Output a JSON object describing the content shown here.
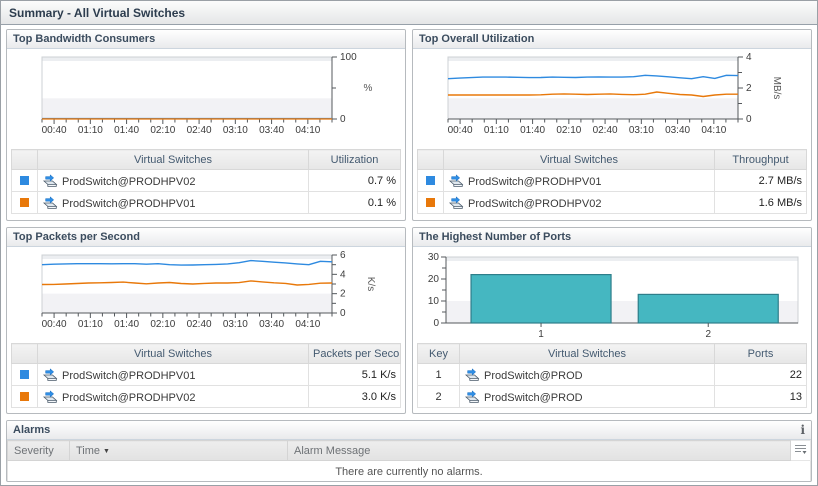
{
  "title": "Summary - All Virtual Switches",
  "colors": {
    "series_blue": "#2E8AE0",
    "series_orange": "#E8780A",
    "bar_teal": "#45B7C1",
    "bar_teal_border": "#2E7E8A"
  },
  "panels": {
    "bandwidth": {
      "title": "Top Bandwidth Consumers",
      "table": {
        "col_name": "Virtual Switches",
        "col_value": "Utilization",
        "rows": [
          {
            "swatch": "#2E8AE0",
            "name": "ProdSwitch@PRODHPV02",
            "value": "0.7 %"
          },
          {
            "swatch": "#E8780A",
            "name": "ProdSwitch@PRODHPV01",
            "value": "0.1 %"
          }
        ]
      }
    },
    "utilization": {
      "title": "Top Overall Utilization",
      "table": {
        "col_name": "Virtual Switches",
        "col_value": "Throughput",
        "rows": [
          {
            "swatch": "#2E8AE0",
            "name": "ProdSwitch@PRODHPV01",
            "value": "2.7 MB/s"
          },
          {
            "swatch": "#E8780A",
            "name": "ProdSwitch@PRODHPV02",
            "value": "1.6 MB/s"
          }
        ]
      }
    },
    "packets": {
      "title": "Top Packets per Second",
      "table": {
        "col_name": "Virtual Switches",
        "col_value": "Packets per Second",
        "rows": [
          {
            "swatch": "#2E8AE0",
            "name": "ProdSwitch@PRODHPV01",
            "value": "5.1 K/s"
          },
          {
            "swatch": "#E8780A",
            "name": "ProdSwitch@PRODHPV02",
            "value": "3.0 K/s"
          }
        ]
      }
    },
    "ports": {
      "title": "The Highest Number of Ports",
      "table": {
        "col_key": "Key",
        "col_name": "Virtual Switches",
        "col_value": "Ports",
        "rows": [
          {
            "key": "1",
            "name": "ProdSwitch@PROD",
            "value": "22"
          },
          {
            "key": "2",
            "name": "ProdSwitch@PROD",
            "value": "13"
          }
        ]
      }
    }
  },
  "alarms": {
    "title": "Alarms",
    "info_icon": "i",
    "col_severity": "Severity",
    "col_time": "Time",
    "col_message": "Alarm Message",
    "empty_message": "There are currently no alarms."
  },
  "chart_data": [
    {
      "id": "bandwidth",
      "type": "line",
      "title": "Top Bandwidth Consumers",
      "ylabel": "%",
      "ylim": [
        0,
        100
      ],
      "yticks": [
        0,
        100
      ],
      "x_labels": [
        "00:40",
        "01:10",
        "01:40",
        "02:10",
        "02:40",
        "03:10",
        "03:40",
        "04:10"
      ],
      "legend_position": "table-below",
      "grid": false,
      "series": [
        {
          "name": "ProdSwitch@PRODHPV02",
          "color": "#2E8AE0",
          "values": [
            0.7,
            0.7
          ]
        },
        {
          "name": "ProdSwitch@PRODHPV01",
          "color": "#E8780A",
          "values": [
            0.1,
            0.1
          ]
        }
      ]
    },
    {
      "id": "utilization",
      "type": "line",
      "title": "Top Overall Utilization",
      "ylabel": "MB/s",
      "ylim": [
        0,
        4
      ],
      "yticks": [
        0,
        2,
        4
      ],
      "x_labels": [
        "00:40",
        "01:10",
        "01:40",
        "02:10",
        "02:40",
        "03:10",
        "03:40",
        "04:10"
      ],
      "legend_position": "table-below",
      "grid": false,
      "series": [
        {
          "name": "ProdSwitch@PRODHPV01",
          "color": "#2E8AE0",
          "values": [
            2.6,
            2.64,
            2.67,
            2.7,
            2.7,
            2.7,
            2.69,
            2.67,
            2.68,
            2.7,
            2.69,
            2.68,
            2.7,
            2.71,
            2.7,
            2.7,
            2.73,
            2.82,
            2.78,
            2.72,
            2.66,
            2.6,
            2.73,
            2.62,
            2.82,
            2.8
          ]
        },
        {
          "name": "ProdSwitch@PRODHPV02",
          "color": "#E8780A",
          "values": [
            1.55,
            1.55,
            1.55,
            1.55,
            1.55,
            1.55,
            1.55,
            1.55,
            1.56,
            1.6,
            1.62,
            1.6,
            1.58,
            1.6,
            1.62,
            1.59,
            1.57,
            1.6,
            1.74,
            1.66,
            1.58,
            1.55,
            1.45,
            1.55,
            1.6,
            1.6
          ]
        }
      ]
    },
    {
      "id": "packets",
      "type": "line",
      "title": "Top Packets per Second",
      "ylabel": "K/s",
      "ylim": [
        0,
        6
      ],
      "yticks": [
        0,
        2,
        4,
        6
      ],
      "x_labels": [
        "00:40",
        "01:10",
        "01:40",
        "02:10",
        "02:40",
        "03:10",
        "03:40",
        "04:10"
      ],
      "legend_position": "table-below",
      "grid": false,
      "series": [
        {
          "name": "ProdSwitch@PRODHPV01",
          "color": "#2E8AE0",
          "values": [
            5.0,
            5.05,
            5.08,
            5.1,
            5.1,
            5.1,
            5.09,
            5.1,
            5.1,
            5.05,
            5.1,
            5.0,
            4.95,
            4.97,
            5.0,
            5.03,
            5.08,
            5.2,
            5.42,
            5.35,
            5.26,
            5.18,
            5.08,
            5.0,
            5.35,
            5.3
          ]
        },
        {
          "name": "ProdSwitch@PRODHPV02",
          "color": "#E8780A",
          "values": [
            2.95,
            2.96,
            3.0,
            3.05,
            3.1,
            3.12,
            3.15,
            3.2,
            3.1,
            3.02,
            3.1,
            3.15,
            3.05,
            3.0,
            3.06,
            3.1,
            3.1,
            3.14,
            3.32,
            3.22,
            3.12,
            3.06,
            2.9,
            2.96,
            3.08,
            3.1
          ]
        }
      ]
    },
    {
      "id": "ports",
      "type": "bar",
      "title": "The Highest Number of Ports",
      "xlabel": "",
      "ylabel": "",
      "ylim": [
        0,
        30
      ],
      "yticks": [
        0,
        10,
        20,
        30
      ],
      "categories": [
        "1",
        "2"
      ],
      "values": [
        22,
        13
      ],
      "bar_color": "#45B7C1",
      "bar_border": "#2E7E8A",
      "grid": false
    }
  ]
}
